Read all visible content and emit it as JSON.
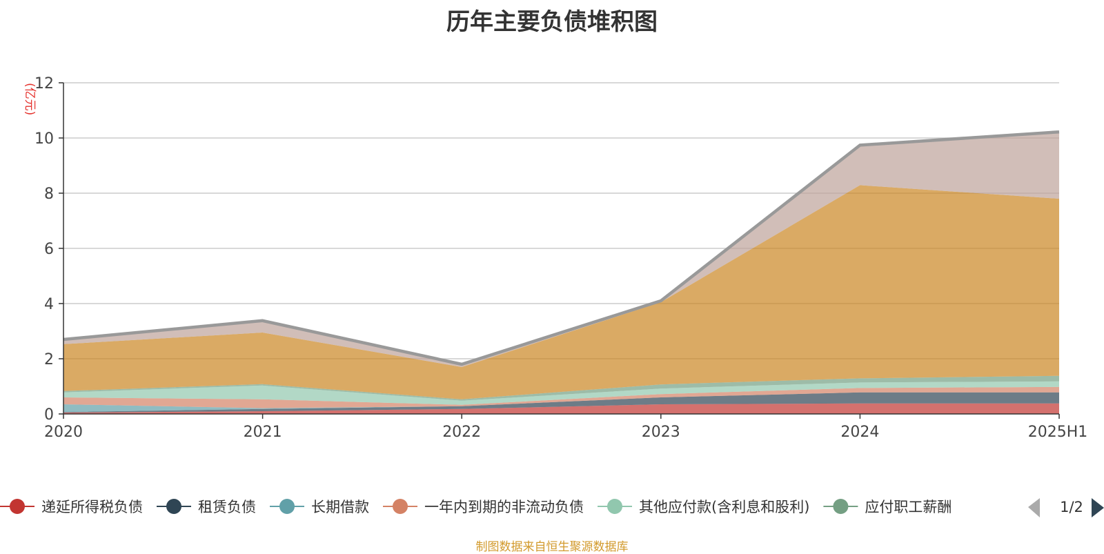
{
  "chart_data": {
    "type": "area",
    "title": "历年主要负债堆积图",
    "ylabel": "(亿元)",
    "xlabel": "",
    "categories": [
      "2020",
      "2021",
      "2022",
      "2023",
      "2024",
      "2025H1"
    ],
    "ylim": [
      0,
      12
    ],
    "yticks": [
      0,
      2,
      4,
      6,
      8,
      10,
      12
    ],
    "grid": true,
    "stacked": true,
    "series": [
      {
        "name": "递延所得税负债",
        "color": "#c23531",
        "values": [
          0.05,
          0.1,
          0.18,
          0.35,
          0.38,
          0.38
        ]
      },
      {
        "name": "租赁负债",
        "color": "#2f4554",
        "values": [
          0.02,
          0.08,
          0.1,
          0.25,
          0.4,
          0.4
        ]
      },
      {
        "name": "长期借款",
        "color": "#61a0a8",
        "values": [
          0.28,
          0.03,
          0.0,
          0.0,
          0.0,
          0.0
        ]
      },
      {
        "name": "一年内到期的非流动负债",
        "color": "#d48265",
        "values": [
          0.25,
          0.32,
          0.05,
          0.12,
          0.16,
          0.2
        ]
      },
      {
        "name": "其他应付款(含利息和股利)",
        "color": "#91c7ae",
        "values": [
          0.18,
          0.5,
          0.15,
          0.2,
          0.2,
          0.2
        ]
      },
      {
        "name": "应付职工薪酬",
        "color": "#749f83",
        "values": [
          0.05,
          0.05,
          0.05,
          0.15,
          0.15,
          0.2
        ]
      },
      {
        "name": "",
        "color": "#ca8622",
        "values": [
          1.7,
          1.87,
          1.17,
          2.98,
          7.0,
          6.42
        ]
      },
      {
        "name": "",
        "color": "#bda29a",
        "values": [
          0.17,
          0.43,
          0.1,
          0.05,
          1.45,
          2.42
        ]
      }
    ],
    "total": {
      "color": "#999999",
      "values": [
        2.7,
        3.38,
        1.8,
        4.1,
        9.74,
        10.22
      ]
    },
    "legend": {
      "position": "bottom",
      "page": "1/2"
    }
  },
  "source": "制图数据来自恒生聚源数据库"
}
